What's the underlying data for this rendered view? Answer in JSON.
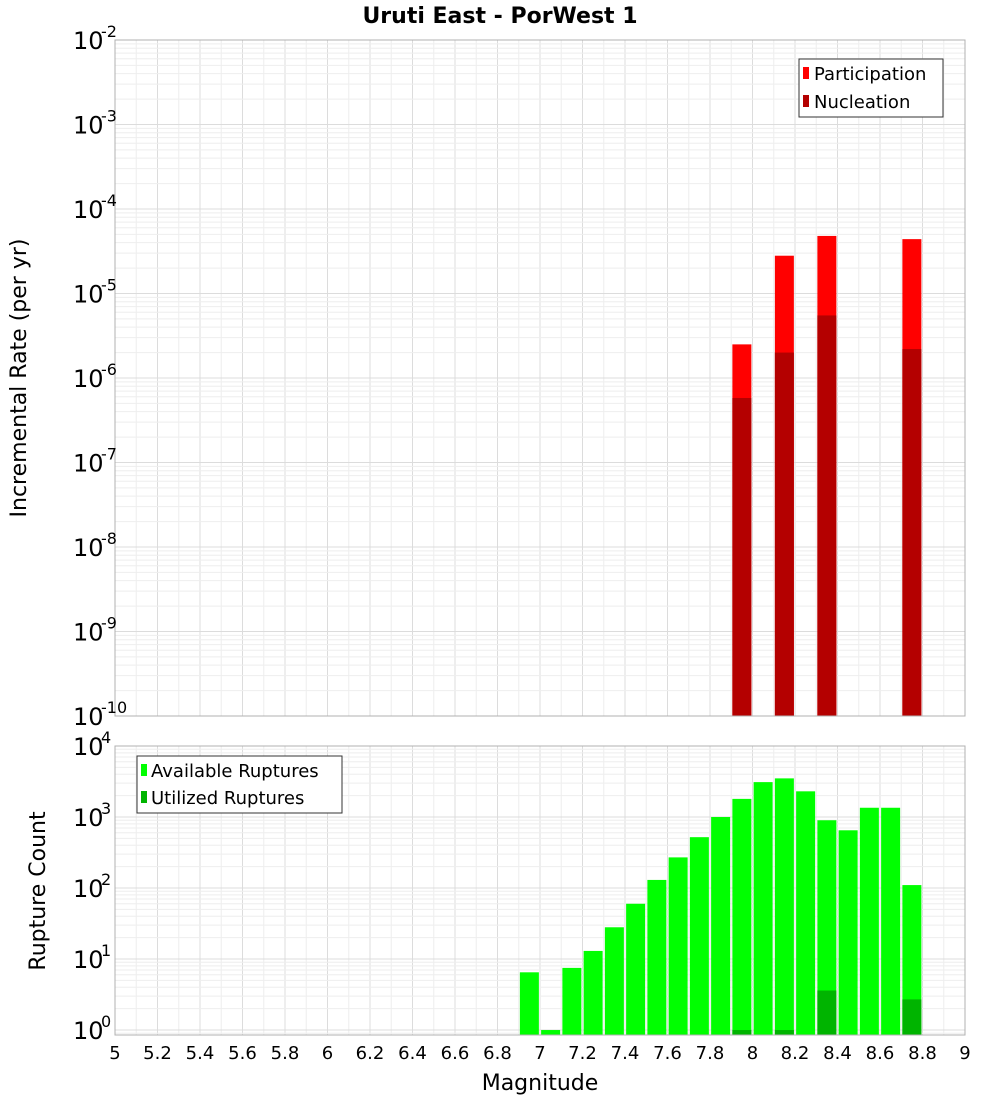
{
  "chart_data": [
    {
      "type": "bar",
      "title": "Uruti East - PorWest 1",
      "xlabel": "",
      "ylabel": "Incremental Rate (per yr)",
      "yscale": "log",
      "xlim": [
        5,
        9
      ],
      "ylim_exp": [
        -10,
        -2
      ],
      "y_tick_exponents": [
        "-10",
        "-9",
        "-8",
        "-7",
        "-6",
        "-5",
        "-4",
        "-3",
        "-2"
      ],
      "legend_position": "top-right",
      "legend": [
        {
          "name": "Participation",
          "color": "#ff0000"
        },
        {
          "name": "Nucleation",
          "color": "#b40000"
        }
      ],
      "series": [
        {
          "name": "Participation",
          "color": "#ff0000",
          "x": [
            7.95,
            8.15,
            8.35,
            8.75
          ],
          "values": [
            2.5e-06,
            2.8e-05,
            4.8e-05,
            4.4e-05
          ]
        },
        {
          "name": "Nucleation",
          "color": "#b40000",
          "x": [
            7.95,
            8.15,
            8.35,
            8.75
          ],
          "values": [
            5.8e-07,
            2e-06,
            5.5e-06,
            2.2e-06
          ]
        }
      ]
    },
    {
      "type": "bar",
      "title": "",
      "xlabel": "Magnitude",
      "ylabel": "Rupture Count",
      "yscale": "log",
      "xlim": [
        5,
        9
      ],
      "ylim_exp": [
        -0.07,
        4
      ],
      "y_tick_exponents": [
        "0",
        "1",
        "2",
        "3",
        "4"
      ],
      "x_tick_labels": [
        "5",
        "5.2",
        "5.4",
        "5.6",
        "5.8",
        "6",
        "6.2",
        "6.4",
        "6.6",
        "6.8",
        "7",
        "7.2",
        "7.4",
        "7.6",
        "7.8",
        "8",
        "8.2",
        "8.4",
        "8.6",
        "8.8",
        "9"
      ],
      "legend_position": "top-left",
      "legend": [
        {
          "name": "Available Ruptures",
          "color": "#00ff00"
        },
        {
          "name": "Utilized Ruptures",
          "color": "#00b400"
        }
      ],
      "series": [
        {
          "name": "Available Ruptures",
          "color": "#00ff00",
          "x": [
            6.95,
            7.05,
            7.15,
            7.25,
            7.35,
            7.45,
            7.55,
            7.65,
            7.75,
            7.85,
            7.95,
            8.05,
            8.15,
            8.25,
            8.35,
            8.45,
            8.55,
            8.65,
            8.75
          ],
          "values": [
            6.5,
            1.0,
            7.5,
            13,
            28,
            60,
            130,
            270,
            520,
            1000,
            1800,
            3100,
            3500,
            2300,
            900,
            650,
            1350,
            1350,
            110
          ]
        },
        {
          "name": "Utilized Ruptures",
          "color": "#00b400",
          "x": [
            7.95,
            8.15,
            8.35,
            8.75
          ],
          "values": [
            1.0,
            1.0,
            3.6,
            2.7
          ]
        }
      ]
    }
  ]
}
